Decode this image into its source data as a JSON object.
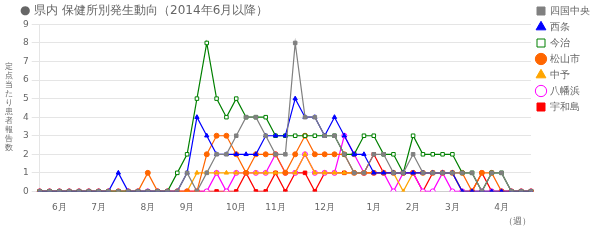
{
  "chart_data": {
    "type": "line",
    "title": "● 県内 保健所別発生動向（2014年6月以降）",
    "ylabel": "定\n点\n当\nた\nり\n患\n者\n報\n告\n数",
    "xlabel": "（週）",
    "categories": [
      null,
      null,
      "6月",
      null,
      null,
      null,
      "7月",
      null,
      null,
      null,
      null,
      "8月",
      null,
      null,
      null,
      "9月",
      null,
      null,
      null,
      null,
      "10月",
      null,
      null,
      null,
      "11月",
      null,
      null,
      null,
      null,
      "12月",
      null,
      null,
      null,
      null,
      "1月",
      null,
      null,
      null,
      "2月",
      null,
      null,
      null,
      "3月",
      null,
      null,
      null,
      null,
      "4月",
      null,
      null,
      null
    ],
    "series": [
      {
        "name": "四国中央",
        "color": "#808080",
        "marker": "square",
        "values": [
          0,
          0,
          0,
          0,
          0,
          0,
          0,
          0,
          0,
          0,
          0,
          0,
          0,
          0,
          0,
          1,
          0,
          1,
          2,
          2,
          3,
          4,
          4,
          3,
          2,
          2,
          8,
          4,
          4,
          3,
          3,
          2,
          1,
          1,
          2,
          2,
          1,
          1,
          2,
          1,
          1,
          1,
          1,
          1,
          1,
          0,
          1,
          1,
          0,
          0,
          0
        ]
      },
      {
        "name": "西条",
        "color": "#0000FF",
        "marker": "triangle",
        "values": [
          0,
          0,
          0,
          0,
          0,
          0,
          0,
          0,
          1,
          0,
          0,
          0,
          0,
          0,
          0,
          1,
          4,
          3,
          2,
          2,
          2,
          2,
          2,
          3,
          3,
          3,
          5,
          4,
          4,
          3,
          4,
          3,
          2,
          2,
          1,
          1,
          1,
          1,
          1,
          1,
          1,
          1,
          1,
          0,
          0,
          0,
          0,
          0,
          0,
          0,
          0
        ]
      },
      {
        "name": "今治",
        "color": "#008000",
        "marker": "open_square",
        "values": [
          0,
          0,
          0,
          0,
          0,
          0,
          0,
          0,
          0,
          0,
          0,
          0,
          0,
          0,
          1,
          2,
          5,
          8,
          5,
          4,
          5,
          4,
          4,
          4,
          3,
          3,
          3,
          3,
          3,
          3,
          3,
          2,
          2,
          3,
          3,
          2,
          2,
          1,
          3,
          2,
          2,
          2,
          2,
          1,
          1,
          0,
          1,
          1,
          0,
          0,
          0
        ]
      },
      {
        "name": "松山市",
        "color": "#FF6600",
        "marker": "circle",
        "values": [
          0,
          0,
          0,
          0,
          0,
          0,
          0,
          0,
          0,
          0,
          0,
          1,
          0,
          0,
          0,
          0,
          0,
          2,
          3,
          3,
          2,
          1,
          2,
          2,
          2,
          1,
          2,
          3,
          2,
          2,
          2,
          2,
          1,
          1,
          1,
          1,
          1,
          1,
          1,
          1,
          1,
          1,
          1,
          1,
          0,
          1,
          1,
          0,
          0,
          0,
          0
        ]
      },
      {
        "name": "中予",
        "color": "#FFA500",
        "marker": "triangle",
        "values": [
          0,
          0,
          0,
          0,
          0,
          0,
          0,
          0,
          0,
          0,
          0,
          0,
          0,
          0,
          0,
          0,
          1,
          1,
          1,
          1,
          1,
          1,
          1,
          1,
          1,
          1,
          1,
          2,
          1,
          1,
          1,
          1,
          1,
          1,
          1,
          1,
          1,
          0,
          1,
          1,
          1,
          1,
          1,
          0,
          0,
          0,
          0,
          0,
          0,
          0,
          0
        ]
      },
      {
        "name": "八幡浜",
        "color": "#FF00FF",
        "marker": "open_circle",
        "values": [
          0,
          0,
          0,
          0,
          0,
          0,
          0,
          0,
          0,
          0,
          0,
          0,
          0,
          0,
          0,
          0,
          0,
          0,
          1,
          0,
          1,
          1,
          1,
          1,
          2,
          1,
          1,
          2,
          1,
          1,
          1,
          3,
          2,
          1,
          1,
          1,
          0,
          1,
          1,
          0,
          0,
          1,
          0,
          0,
          0,
          0,
          0,
          0,
          0,
          0,
          0
        ]
      },
      {
        "name": "宇和島",
        "color": "#FF0000",
        "marker": "square",
        "values": [
          0,
          0,
          0,
          0,
          0,
          0,
          0,
          0,
          0,
          0,
          0,
          0,
          0,
          0,
          0,
          0,
          0,
          0,
          0,
          0,
          0,
          1,
          0,
          0,
          1,
          0,
          1,
          1,
          0,
          1,
          1,
          1,
          1,
          1,
          2,
          1,
          1,
          1,
          1,
          0,
          1,
          1,
          1,
          0,
          0,
          1,
          0,
          0,
          0,
          0,
          0
        ]
      }
    ],
    "ylim": [
      0,
      9
    ],
    "yticks": [
      0,
      1,
      2,
      3,
      4,
      5,
      6,
      7,
      8,
      9
    ],
    "grid": true,
    "legend": "right"
  }
}
